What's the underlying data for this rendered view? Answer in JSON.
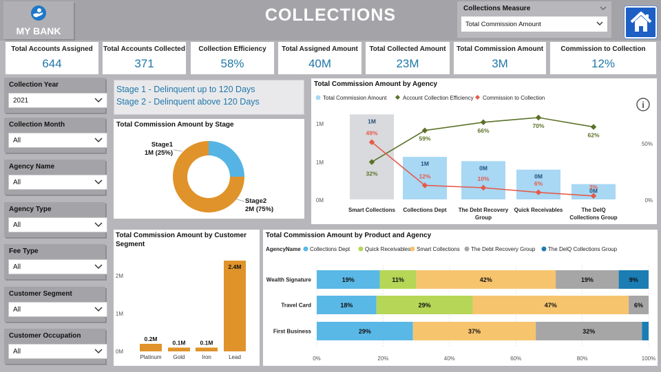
{
  "header": {
    "logo_text": "MY BANK",
    "title": "COLLECTIONS",
    "measure_label": "Collections Measure",
    "measure_value": "Total Commission Amount"
  },
  "kpis": [
    {
      "title": "Total Accounts Assigned",
      "value": "644"
    },
    {
      "title": "Total Accounts Collected",
      "value": "371"
    },
    {
      "title": "Collection Efficiency",
      "value": "58%"
    },
    {
      "title": "Total Assigned Amount",
      "value": "40M"
    },
    {
      "title": "Total Collected Amount",
      "value": "23M"
    },
    {
      "title": "Total Commission Amount",
      "value": "3M"
    },
    {
      "title": "Commission to Collection",
      "value": "12%"
    }
  ],
  "slicers": [
    {
      "label": "Collection Year",
      "value": "2021"
    },
    {
      "label": "Collection Month",
      "value": "All"
    },
    {
      "label": "Agency Name",
      "value": "All"
    },
    {
      "label": "Agency Type",
      "value": "All"
    },
    {
      "label": "Fee Type",
      "value": "All"
    },
    {
      "label": "Customer Segment",
      "value": "All"
    },
    {
      "label": "Customer Occupation",
      "value": "All"
    }
  ],
  "stage_info": {
    "line1": "Stage 1 - Delinquent up to 120 Days",
    "line2": "Stage 2 - Delinquent above 120 Days"
  },
  "colors": {
    "blue_light": "#a8d8f4",
    "orange": "#e0932a",
    "olive": "#5b7127",
    "red": "#e55a4a",
    "title_blue": "#1f77a8"
  },
  "chart_data": [
    {
      "id": "stage",
      "type": "pie",
      "title": "Total Commission Amount by Stage",
      "slices": [
        {
          "name": "Stage1",
          "label": "1M (25%)",
          "percent": 25,
          "color": "#55b4e4"
        },
        {
          "name": "Stage2",
          "label": "2M (75%)",
          "percent": 75,
          "color": "#e0932a"
        }
      ]
    },
    {
      "id": "agency",
      "type": "bar",
      "title": "Total Commission Amount by Agency",
      "legend": [
        "Total Commission Amount",
        "Account Collection Efficiency",
        "Commission to Collection"
      ],
      "categories": [
        "Smart Collections",
        "Collections Dept",
        "The Debt Recovery Group",
        "Quick Receivables",
        "The DelQ Collections Group"
      ],
      "category_lines": [
        [
          "Smart Collections"
        ],
        [
          "Collections Dept"
        ],
        [
          "The Debt Recovery",
          "Group"
        ],
        [
          "Quick Receivables"
        ],
        [
          "The DelQ",
          "Collections Group"
        ]
      ],
      "bar_values": [
        1.0,
        0.5,
        0.45,
        0.35,
        0.18
      ],
      "bar_labels": [
        "1M",
        "1M",
        "0M",
        "0M",
        "0M"
      ],
      "efficiency": [
        32,
        59,
        66,
        70,
        62
      ],
      "efficiency_labels": [
        "32%",
        "59%",
        "66%",
        "70%",
        "62%"
      ],
      "commission_ratio": [
        49,
        12,
        10,
        6,
        3
      ],
      "commission_ratio_labels": [
        "49%",
        "12%",
        "10%",
        "6%",
        "3%"
      ],
      "y_left_ticks": [
        "1M",
        "1M",
        "0M"
      ],
      "y_right_ticks": [
        "50%",
        "0%"
      ],
      "y_left_range": [
        0,
        1.1
      ],
      "y_right_range": [
        0,
        80
      ],
      "info_icon": "i"
    },
    {
      "id": "segment",
      "type": "bar",
      "title": "Total Commission Amount by Customer Segment",
      "title_lines": [
        "Total Commission Amount by Customer",
        "Segment"
      ],
      "categories": [
        "Platinum",
        "Gold",
        "Iron",
        "Lead"
      ],
      "values": [
        0.2,
        0.1,
        0.1,
        2.4
      ],
      "labels": [
        "0.2M",
        "0.1M",
        "0.1M",
        "2.4M"
      ],
      "y_ticks": [
        {
          "value": 2,
          "label": "2M"
        },
        {
          "value": 1,
          "label": "1M"
        },
        {
          "value": 0,
          "label": "0M"
        }
      ],
      "ylim": [
        0,
        2.4
      ]
    },
    {
      "id": "product",
      "type": "bar",
      "title": "Total Commission Amount by Product and Agency",
      "legend_title": "AgencyName",
      "series_names": [
        "Collections Dept",
        "Quick Receivables",
        "Smart Collections",
        "The Debt Recovery Group",
        "The DelQ Collections Group"
      ],
      "series_colors": [
        "#5ab8e6",
        "#b5d656",
        "#f7c46e",
        "#a6a6a6",
        "#1b7db3"
      ],
      "categories": [
        "Wealth Signature",
        "Travel Card",
        "First Business"
      ],
      "values": [
        [
          19,
          11,
          42,
          19,
          9
        ],
        [
          18,
          29,
          47,
          6,
          0
        ],
        [
          29,
          0,
          37,
          32,
          2
        ]
      ],
      "value_labels": [
        [
          "19%",
          "11%",
          "42%",
          "19%",
          "9%"
        ],
        [
          "18%",
          "29%",
          "47%",
          "6%",
          ""
        ],
        [
          "29%",
          "",
          "37%",
          "32%",
          ""
        ]
      ],
      "x_ticks": [
        "0%",
        "20%",
        "40%",
        "60%",
        "80%",
        "100%"
      ]
    }
  ]
}
